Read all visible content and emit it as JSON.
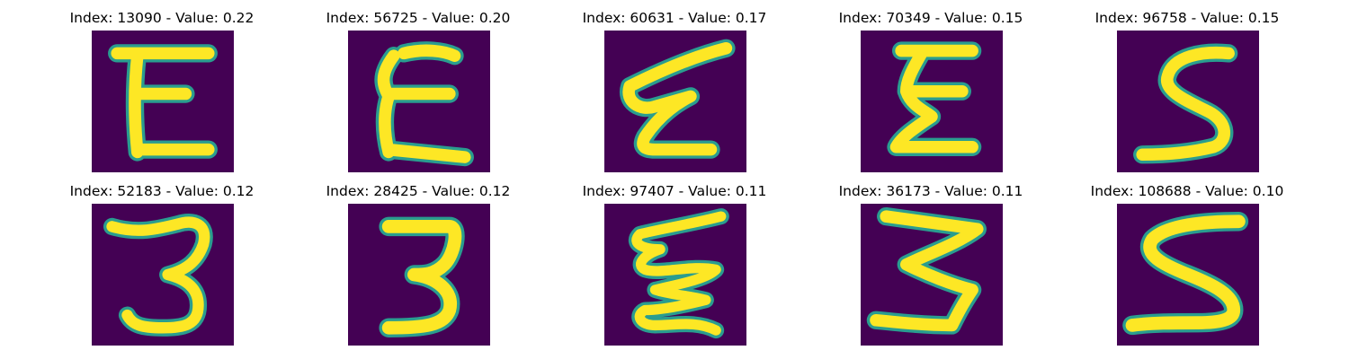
{
  "colors": {
    "background": "#440154",
    "stroke_edge": "#2a9d8f",
    "stroke_core": "#fde725",
    "stroke_mid": "#35b779"
  },
  "panels": [
    {
      "title": "Index: 13090 - Value: 0.22",
      "glyph": "E-upright"
    },
    {
      "title": "Index: 56725 - Value: 0.20",
      "glyph": "E-upright"
    },
    {
      "title": "Index: 60631 - Value: 0.17",
      "glyph": "E-slanted"
    },
    {
      "title": "Index: 70349 - Value: 0.15",
      "glyph": "E-upright"
    },
    {
      "title": "Index: 96758 - Value: 0.15",
      "glyph": "S"
    },
    {
      "title": "Index: 52183 - Value: 0.12",
      "glyph": "3"
    },
    {
      "title": "Index: 28425 - Value: 0.12",
      "glyph": "3"
    },
    {
      "title": "Index: 97407 - Value: 0.11",
      "glyph": "E-wavy"
    },
    {
      "title": "Index: 36173 - Value: 0.11",
      "glyph": "Z"
    },
    {
      "title": "Index: 108688 - Value: 0.10",
      "glyph": "S"
    }
  ]
}
